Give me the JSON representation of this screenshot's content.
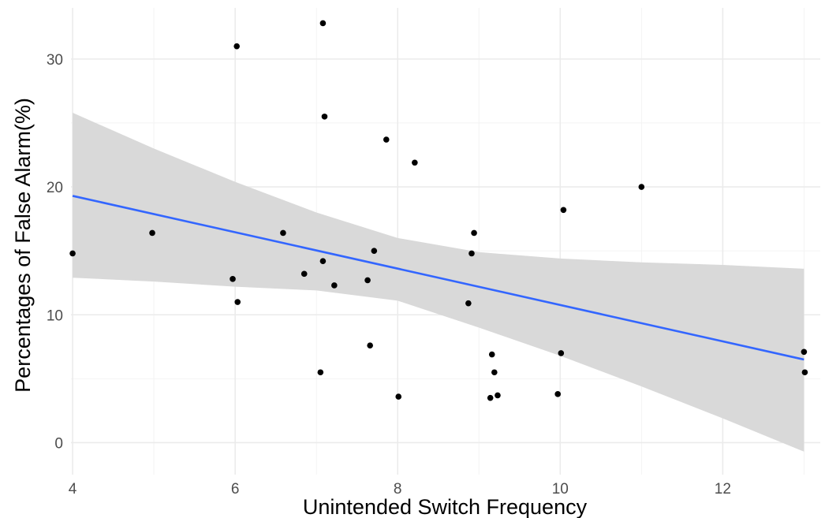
{
  "chart_data": {
    "type": "scatter",
    "title": "",
    "xlabel": "Unintended Switch Frequency",
    "ylabel": "Percentages of False Alarm(%)",
    "xlim": [
      3.98,
      13.2
    ],
    "ylim": [
      -2.5,
      34
    ],
    "x_ticks": [
      4,
      6,
      8,
      10,
      12
    ],
    "y_ticks": [
      0,
      10,
      20,
      30
    ],
    "grid": true,
    "colors": {
      "points": "#000000",
      "fit_line": "#3366ff",
      "confidence_band": "#d9d9d9",
      "grid": "#ebebeb"
    },
    "points": [
      {
        "x": 4.0,
        "y": 14.8
      },
      {
        "x": 4.98,
        "y": 16.4
      },
      {
        "x": 5.97,
        "y": 12.8
      },
      {
        "x": 6.02,
        "y": 31.0
      },
      {
        "x": 6.03,
        "y": 11.0
      },
      {
        "x": 6.59,
        "y": 16.4
      },
      {
        "x": 6.85,
        "y": 13.2
      },
      {
        "x": 7.05,
        "y": 5.5
      },
      {
        "x": 7.08,
        "y": 14.2
      },
      {
        "x": 7.08,
        "y": 32.8
      },
      {
        "x": 7.1,
        "y": 25.5
      },
      {
        "x": 7.22,
        "y": 12.3
      },
      {
        "x": 7.63,
        "y": 12.7
      },
      {
        "x": 7.66,
        "y": 7.6
      },
      {
        "x": 7.71,
        "y": 15.0
      },
      {
        "x": 7.86,
        "y": 23.7
      },
      {
        "x": 8.01,
        "y": 3.6
      },
      {
        "x": 8.21,
        "y": 21.9
      },
      {
        "x": 8.87,
        "y": 10.9
      },
      {
        "x": 8.91,
        "y": 14.8
      },
      {
        "x": 8.94,
        "y": 16.4
      },
      {
        "x": 9.14,
        "y": 3.5
      },
      {
        "x": 9.16,
        "y": 6.9
      },
      {
        "x": 9.19,
        "y": 5.5
      },
      {
        "x": 9.23,
        "y": 3.7
      },
      {
        "x": 9.97,
        "y": 3.8
      },
      {
        "x": 10.01,
        "y": 7.0
      },
      {
        "x": 10.04,
        "y": 18.2
      },
      {
        "x": 11.0,
        "y": 20.0
      },
      {
        "x": 13.0,
        "y": 7.1
      },
      {
        "x": 13.01,
        "y": 5.5
      }
    ],
    "fit_line": {
      "x": [
        4.0,
        13.0
      ],
      "y": [
        19.3,
        6.5
      ]
    },
    "confidence_band": {
      "x": [
        4.0,
        5.0,
        6.0,
        7.0,
        8.0,
        9.0,
        10.0,
        11.0,
        12.0,
        13.0
      ],
      "upper": [
        25.8,
        23.0,
        20.4,
        18.0,
        16.0,
        14.9,
        14.4,
        14.1,
        13.9,
        13.6
      ],
      "lower": [
        12.9,
        12.6,
        12.2,
        11.9,
        11.1,
        9.0,
        6.8,
        4.4,
        1.9,
        -0.7
      ]
    }
  }
}
